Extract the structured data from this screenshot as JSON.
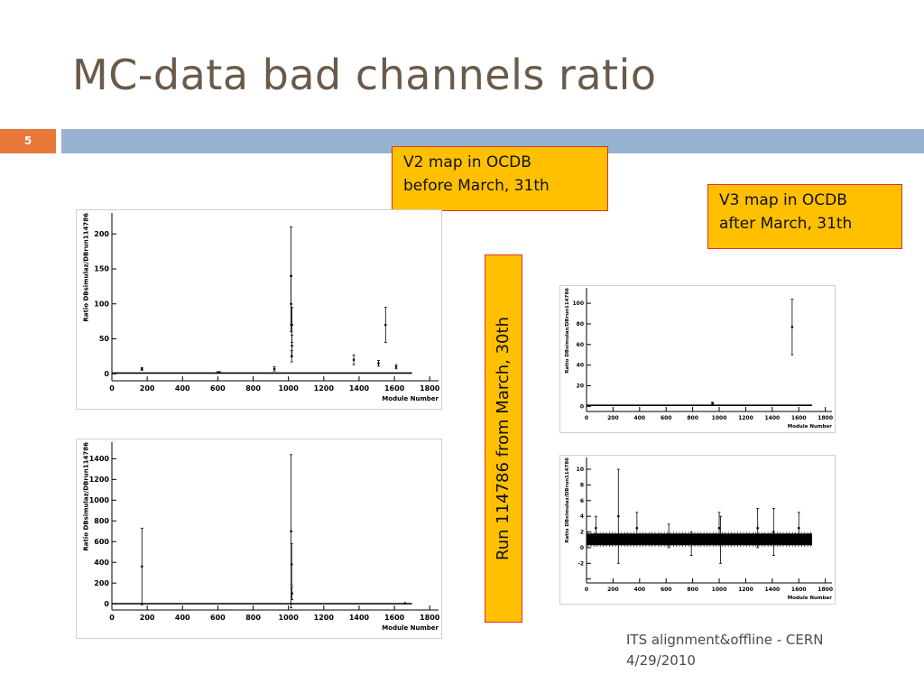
{
  "slide": {
    "title": "MC-data bad channels ratio",
    "number": "5",
    "footer_line1": "ITS alignment&offline - CERN",
    "footer_line2": "4/29/2010"
  },
  "callouts": {
    "v2": [
      "V2 map in OCDB",
      "before March, 31th"
    ],
    "v3": [
      "V3 map in OCDB",
      "after March, 31th"
    ],
    "run": "Run 114786 from March, 30th"
  },
  "colors": {
    "orange": "#e8793a",
    "blue": "#98b2d1",
    "callout": "#fec000",
    "callout_border": "#e03030",
    "title": "#6b5a4a"
  },
  "chart_data": [
    {
      "type": "scatter",
      "xlabel": "Module Number",
      "ylabel": "Ratio DBsimulaz/DBrun114786",
      "xlim": [
        0,
        1850
      ],
      "ylim": [
        -10,
        230
      ],
      "xticks": [
        0,
        200,
        400,
        600,
        800,
        1000,
        1200,
        1400,
        1600,
        1800
      ],
      "yticks": [
        0,
        50,
        100,
        150,
        200
      ],
      "baseline": 1,
      "points": [
        [
          170,
          7,
          2
        ],
        [
          600,
          2,
          1
        ],
        [
          610,
          2,
          1
        ],
        [
          920,
          7,
          3
        ],
        [
          1015,
          140,
          70
        ],
        [
          1015,
          100,
          40
        ],
        [
          1020,
          70,
          25
        ],
        [
          1020,
          40,
          15
        ],
        [
          1018,
          25,
          8
        ],
        [
          1370,
          20,
          7
        ],
        [
          1510,
          15,
          4
        ],
        [
          1550,
          70,
          25
        ],
        [
          1610,
          10,
          3
        ]
      ]
    },
    {
      "type": "scatter",
      "xlabel": "Module Number",
      "ylabel": "Ratio DBsimulaz/DBrun114786",
      "xlim": [
        0,
        1850
      ],
      "ylim": [
        -60,
        1560
      ],
      "xticks": [
        0,
        200,
        400,
        600,
        800,
        1000,
        1200,
        1400,
        1600,
        1800
      ],
      "yticks": [
        0,
        200,
        400,
        600,
        800,
        1000,
        1200,
        1400
      ],
      "baseline": 1,
      "points": [
        [
          170,
          360,
          370
        ],
        [
          1015,
          700,
          740
        ],
        [
          1018,
          380,
          200
        ],
        [
          1020,
          100,
          60
        ],
        [
          1660,
          5,
          2
        ]
      ]
    },
    {
      "type": "scatter",
      "xlabel": "Module Number",
      "ylabel": "Ratio DBsimulaz/DBrun114786",
      "xlim": [
        0,
        1850
      ],
      "ylim": [
        -5,
        115
      ],
      "xticks": [
        0,
        200,
        400,
        600,
        800,
        1000,
        1200,
        1400,
        1600,
        1800
      ],
      "yticks": [
        0,
        20,
        40,
        60,
        80,
        100
      ],
      "baseline": 1,
      "points": [
        [
          950,
          3,
          1
        ],
        [
          1550,
          77,
          27
        ]
      ]
    },
    {
      "type": "scatter",
      "xlabel": "Module Number",
      "ylabel": "Ratio DBsimulaz/DBrun114786",
      "xlim": [
        0,
        1850
      ],
      "ylim": [
        -4.5,
        11.5
      ],
      "xticks": [
        0,
        200,
        400,
        600,
        800,
        1000,
        1200,
        1400,
        1600,
        1800
      ],
      "yticks": [
        -4,
        -2,
        0,
        2,
        4,
        6,
        8,
        10
      ],
      "yticklabels": [
        "",
        "-2",
        "0",
        "2",
        "4",
        "6",
        "8",
        "10"
      ],
      "baseline": 1,
      "band": [
        0.3,
        1.8
      ],
      "points": [
        [
          240,
          4,
          6
        ],
        [
          70,
          2.5,
          1.5
        ],
        [
          380,
          2.5,
          2
        ],
        [
          1000,
          2.5,
          2
        ],
        [
          1010,
          1,
          3
        ],
        [
          1290,
          2.5,
          2.5
        ],
        [
          1410,
          2,
          3
        ],
        [
          1600,
          2.5,
          2
        ],
        [
          620,
          1.5,
          1.5
        ],
        [
          790,
          0.5,
          1.5
        ]
      ]
    }
  ]
}
